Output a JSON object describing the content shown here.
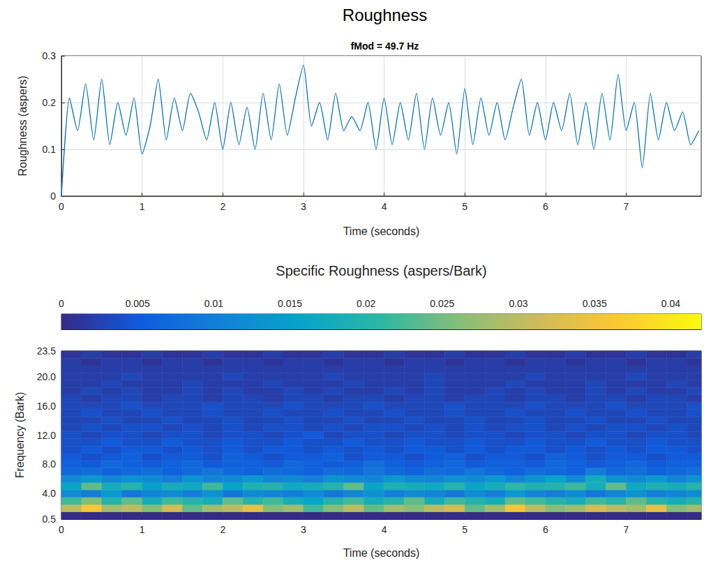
{
  "chart_data": [
    {
      "type": "line",
      "title": "Roughness",
      "subtitle": "fMod = 49.7 Hz",
      "x_label": "Time (seconds)",
      "y_label": "Roughness (aspers)",
      "x": [
        0,
        0.1,
        0.2,
        0.3,
        0.4,
        0.5,
        0.6,
        0.7,
        0.8,
        0.9,
        1,
        1.1,
        1.2,
        1.3,
        1.4,
        1.5,
        1.6,
        1.7,
        1.8,
        1.9,
        2,
        2.1,
        2.2,
        2.3,
        2.4,
        2.5,
        2.6,
        2.7,
        2.8,
        2.9,
        3,
        3.1,
        3.2,
        3.3,
        3.4,
        3.5,
        3.6,
        3.7,
        3.8,
        3.9,
        4,
        4.1,
        4.2,
        4.3,
        4.4,
        4.5,
        4.6,
        4.7,
        4.8,
        4.9,
        5,
        5.1,
        5.2,
        5.3,
        5.4,
        5.5,
        5.6,
        5.7,
        5.8,
        5.9,
        6,
        6.1,
        6.2,
        6.3,
        6.4,
        6.5,
        6.6,
        6.7,
        6.8,
        6.9,
        7,
        7.1,
        7.2,
        7.3,
        7.4,
        7.5,
        7.6,
        7.7,
        7.8,
        7.9
      ],
      "values": [
        0,
        0.21,
        0.14,
        0.24,
        0.12,
        0.25,
        0.11,
        0.2,
        0.13,
        0.21,
        0.09,
        0.15,
        0.25,
        0.12,
        0.21,
        0.14,
        0.22,
        0.18,
        0.12,
        0.2,
        0.1,
        0.2,
        0.11,
        0.19,
        0.1,
        0.22,
        0.12,
        0.24,
        0.13,
        0.21,
        0.28,
        0.15,
        0.2,
        0.12,
        0.22,
        0.14,
        0.17,
        0.14,
        0.2,
        0.1,
        0.21,
        0.11,
        0.2,
        0.12,
        0.22,
        0.1,
        0.21,
        0.13,
        0.2,
        0.09,
        0.23,
        0.11,
        0.21,
        0.13,
        0.2,
        0.12,
        0.19,
        0.25,
        0.13,
        0.2,
        0.12,
        0.2,
        0.14,
        0.22,
        0.11,
        0.2,
        0.1,
        0.22,
        0.12,
        0.26,
        0.14,
        0.2,
        0.06,
        0.22,
        0.12,
        0.2,
        0.14,
        0.18,
        0.11,
        0.14
      ],
      "color": "#0072bd",
      "xlim": [
        0,
        7.93
      ],
      "xticks": [
        0,
        1,
        2,
        3,
        4,
        5,
        6,
        7
      ],
      "ylim": [
        0,
        0.3
      ],
      "yticks": [
        0,
        0.1,
        0.2,
        0.3
      ],
      "grid": true
    },
    {
      "type": "heatmap",
      "x_label": "Time (seconds)",
      "y_label": "Frequency (Bark)",
      "xlim": [
        0,
        7.93
      ],
      "xticks": [
        0,
        1,
        2,
        3,
        4,
        5,
        6,
        7
      ],
      "ylim": [
        0.5,
        23.5
      ],
      "yticks": [
        {
          "value": 0.5,
          "label": "0.5"
        },
        {
          "value": 4,
          "label": "4.0"
        },
        {
          "value": 8,
          "label": "8.0"
        },
        {
          "value": 12,
          "label": "12.0"
        },
        {
          "value": 16,
          "label": "16.0"
        },
        {
          "value": 20,
          "label": "20.0"
        },
        {
          "value": 23.5,
          "label": "23.5"
        }
      ],
      "grid": false,
      "x_edges": [
        0,
        0.25,
        0.5,
        0.75,
        1,
        1.25,
        1.5,
        1.75,
        2,
        2.25,
        2.5,
        2.75,
        3,
        3.25,
        3.5,
        3.75,
        4,
        4.25,
        4.5,
        4.75,
        5,
        5.25,
        5.5,
        5.75,
        6,
        6.25,
        6.5,
        6.75,
        7,
        7.25,
        7.5,
        7.75,
        8
      ],
      "y_edges": [
        0.5,
        1.5,
        2.5,
        3.5,
        4.5,
        5.5,
        6.5,
        7.5,
        8.5,
        9.5,
        10.5,
        11.5,
        12.5,
        13.5,
        14.5,
        15.5,
        16.5,
        17.5,
        18.5,
        19.5,
        20.5,
        21.5,
        22.5,
        23.5
      ],
      "cells": [
        [
          0,
          0,
          0,
          0,
          0,
          0,
          0,
          0,
          0,
          0,
          0,
          0,
          0,
          0,
          0,
          0,
          0,
          0,
          0,
          0,
          0,
          0,
          0,
          0,
          0,
          0,
          0,
          0,
          0,
          0,
          0,
          0
        ],
        [
          0.03,
          0.036,
          0.028,
          0.03,
          0.026,
          0.032,
          0.024,
          0.028,
          0.03,
          0.034,
          0.026,
          0.028,
          0.022,
          0.026,
          0.03,
          0.024,
          0.028,
          0.026,
          0.03,
          0.032,
          0.024,
          0.028,
          0.036,
          0.03,
          0.026,
          0.028,
          0.032,
          0.03,
          0.028,
          0.034,
          0.026,
          0.028
        ],
        [
          0.022,
          0.026,
          0.02,
          0.024,
          0.018,
          0.022,
          0.02,
          0.018,
          0.024,
          0.02,
          0.022,
          0.018,
          0.016,
          0.02,
          0.022,
          0.018,
          0.02,
          0.024,
          0.018,
          0.022,
          0.02,
          0.018,
          0.024,
          0.022,
          0.02,
          0.018,
          0.022,
          0.02,
          0.024,
          0.02,
          0.018,
          0.02
        ],
        [
          0.012,
          0.01,
          0.014,
          0.009,
          0.011,
          0.012,
          0.01,
          0.013,
          0.009,
          0.012,
          0.011,
          0.01,
          0.012,
          0.009,
          0.011,
          0.013,
          0.01,
          0.012,
          0.011,
          0.009,
          0.012,
          0.01,
          0.014,
          0.011,
          0.01,
          0.012,
          0.009,
          0.011,
          0.013,
          0.01,
          0.011,
          0.012
        ],
        [
          0.016,
          0.024,
          0.018,
          0.02,
          0.015,
          0.018,
          0.017,
          0.022,
          0.016,
          0.019,
          0.02,
          0.017,
          0.018,
          0.02,
          0.024,
          0.016,
          0.019,
          0.018,
          0.017,
          0.02,
          0.016,
          0.018,
          0.021,
          0.019,
          0.02,
          0.022,
          0.018,
          0.024,
          0.017,
          0.019,
          0.018,
          0.02
        ],
        [
          0.012,
          0.014,
          0.011,
          0.013,
          0.012,
          0.01,
          0.013,
          0.011,
          0.012,
          0.014,
          0.011,
          0.012,
          0.01,
          0.013,
          0.012,
          0.011,
          0.014,
          0.012,
          0.011,
          0.013,
          0.012,
          0.014,
          0.011,
          0.013,
          0.016,
          0.012,
          0.018,
          0.013,
          0.012,
          0.014,
          0.011,
          0.013
        ],
        [
          0.007,
          0.008,
          0.006,
          0.007,
          0.008,
          0.006,
          0.007,
          0.009,
          0.007,
          0.006,
          0.008,
          0.007,
          0.006,
          0.008,
          0.007,
          0.009,
          0.007,
          0.006,
          0.008,
          0.007,
          0.009,
          0.007,
          0.006,
          0.008,
          0.007,
          0.006,
          0.01,
          0.007,
          0.008,
          0.006,
          0.007,
          0.008
        ],
        [
          0.006,
          0.005,
          0.007,
          0.006,
          0.005,
          0.006,
          0.007,
          0.005,
          0.006,
          0.006,
          0.005,
          0.007,
          0.006,
          0.005,
          0.006,
          0.008,
          0.006,
          0.005,
          0.006,
          0.007,
          0.005,
          0.006,
          0.006,
          0.005,
          0.007,
          0.006,
          0.005,
          0.006,
          0.007,
          0.005,
          0.006,
          0.006
        ],
        [
          0.005,
          0.004,
          0.005,
          0.006,
          0.004,
          0.005,
          0.005,
          0.004,
          0.006,
          0.005,
          0.004,
          0.005,
          0.005,
          0.006,
          0.004,
          0.005,
          0.005,
          0.004,
          0.005,
          0.006,
          0.004,
          0.005,
          0.005,
          0.004,
          0.006,
          0.005,
          0.004,
          0.005,
          0.005,
          0.004,
          0.005,
          0.005
        ],
        [
          0.004,
          0.005,
          0.004,
          0.005,
          0.005,
          0.004,
          0.005,
          0.004,
          0.005,
          0.004,
          0.005,
          0.005,
          0.004,
          0.005,
          0.004,
          0.005,
          0.004,
          0.005,
          0.005,
          0.004,
          0.005,
          0.004,
          0.005,
          0.005,
          0.004,
          0.005,
          0.004,
          0.005,
          0.004,
          0.005,
          0.005,
          0.004
        ],
        [
          0.004,
          0.004,
          0.005,
          0.004,
          0.004,
          0.005,
          0.004,
          0.004,
          0.005,
          0.004,
          0.004,
          0.005,
          0.004,
          0.004,
          0.005,
          0.004,
          0.004,
          0.005,
          0.004,
          0.004,
          0.005,
          0.004,
          0.004,
          0.005,
          0.004,
          0.004,
          0.005,
          0.004,
          0.004,
          0.005,
          0.004,
          0.004
        ],
        [
          0.004,
          0.003,
          0.004,
          0.004,
          0.003,
          0.004,
          0.004,
          0.003,
          0.004,
          0.004,
          0.003,
          0.004,
          0.005,
          0.003,
          0.004,
          0.004,
          0.003,
          0.004,
          0.004,
          0.003,
          0.004,
          0.004,
          0.003,
          0.004,
          0.004,
          0.003,
          0.004,
          0.004,
          0.003,
          0.004,
          0.004,
          0.003
        ],
        [
          0.003,
          0.004,
          0.003,
          0.004,
          0.004,
          0.003,
          0.004,
          0.003,
          0.004,
          0.003,
          0.004,
          0.004,
          0.003,
          0.004,
          0.003,
          0.004,
          0.004,
          0.003,
          0.004,
          0.003,
          0.004,
          0.003,
          0.004,
          0.004,
          0.003,
          0.004,
          0.003,
          0.004,
          0.004,
          0.003,
          0.004,
          0.003
        ],
        [
          0.003,
          0.003,
          0.004,
          0.003,
          0.003,
          0.004,
          0.003,
          0.003,
          0.004,
          0.003,
          0.003,
          0.004,
          0.003,
          0.003,
          0.004,
          0.003,
          0.003,
          0.004,
          0.003,
          0.003,
          0.004,
          0.003,
          0.003,
          0.004,
          0.003,
          0.003,
          0.004,
          0.003,
          0.003,
          0.004,
          0.003,
          0.003
        ],
        [
          0.003,
          0.004,
          0.003,
          0.003,
          0.004,
          0.003,
          0.003,
          0.004,
          0.003,
          0.003,
          0.004,
          0.003,
          0.003,
          0.004,
          0.003,
          0.003,
          0.004,
          0.003,
          0.003,
          0.004,
          0.003,
          0.003,
          0.004,
          0.003,
          0.003,
          0.004,
          0.003,
          0.003,
          0.004,
          0.003,
          0.003,
          0.004
        ],
        [
          0.003,
          0.003,
          0.003,
          0.004,
          0.003,
          0.003,
          0.003,
          0.004,
          0.003,
          0.003,
          0.003,
          0.004,
          0.003,
          0.003,
          0.003,
          0.004,
          0.003,
          0.003,
          0.003,
          0.004,
          0.003,
          0.003,
          0.003,
          0.004,
          0.003,
          0.003,
          0.003,
          0.004,
          0.003,
          0.003,
          0.003,
          0.004
        ],
        [
          0.003,
          0.002,
          0.003,
          0.003,
          0.002,
          0.003,
          0.003,
          0.002,
          0.003,
          0.003,
          0.002,
          0.003,
          0.003,
          0.002,
          0.003,
          0.003,
          0.002,
          0.003,
          0.003,
          0.002,
          0.003,
          0.003,
          0.002,
          0.003,
          0.003,
          0.002,
          0.003,
          0.003,
          0.002,
          0.003,
          0.003,
          0.002
        ],
        [
          0.002,
          0.003,
          0.002,
          0.003,
          0.002,
          0.002,
          0.003,
          0.002,
          0.003,
          0.002,
          0.002,
          0.003,
          0.002,
          0.003,
          0.002,
          0.002,
          0.003,
          0.002,
          0.003,
          0.002,
          0.002,
          0.003,
          0.002,
          0.003,
          0.002,
          0.002,
          0.003,
          0.002,
          0.003,
          0.002,
          0.002,
          0.003
        ],
        [
          0.002,
          0.002,
          0.003,
          0.002,
          0.002,
          0.002,
          0.003,
          0.002,
          0.002,
          0.002,
          0.003,
          0.002,
          0.002,
          0.002,
          0.003,
          0.002,
          0.002,
          0.002,
          0.003,
          0.002,
          0.002,
          0.002,
          0.003,
          0.002,
          0.002,
          0.002,
          0.003,
          0.002,
          0.002,
          0.002,
          0.003,
          0.002
        ],
        [
          0.002,
          0.002,
          0.002,
          0.003,
          0.002,
          0.002,
          0.002,
          0.002,
          0.003,
          0.002,
          0.002,
          0.002,
          0.002,
          0.003,
          0.002,
          0.002,
          0.002,
          0.002,
          0.003,
          0.002,
          0.002,
          0.002,
          0.002,
          0.003,
          0.002,
          0.002,
          0.002,
          0.002,
          0.003,
          0.002,
          0.002,
          0.002
        ],
        [
          0.002,
          0.002,
          0.002,
          0.002,
          0.002,
          0.002,
          0.002,
          0.002,
          0.002,
          0.002,
          0.002,
          0.002,
          0.002,
          0.002,
          0.002,
          0.002,
          0.002,
          0.002,
          0.002,
          0.002,
          0.002,
          0.002,
          0.002,
          0.002,
          0.002,
          0.002,
          0.002,
          0.002,
          0.002,
          0.002,
          0.002,
          0.002
        ],
        [
          0.002,
          0.001,
          0.002,
          0.002,
          0.001,
          0.002,
          0.002,
          0.001,
          0.002,
          0.002,
          0.001,
          0.002,
          0.002,
          0.001,
          0.002,
          0.002,
          0.001,
          0.002,
          0.002,
          0.001,
          0.002,
          0.002,
          0.001,
          0.002,
          0.002,
          0.001,
          0.002,
          0.002,
          0.001,
          0.002,
          0.002,
          0.001
        ],
        [
          0.001,
          0.002,
          0.001,
          0.001,
          0.002,
          0.001,
          0.001,
          0.002,
          0.001,
          0.001,
          0.002,
          0.001,
          0.001,
          0.002,
          0.001,
          0.001,
          0.002,
          0.001,
          0.001,
          0.002,
          0.001,
          0.001,
          0.002,
          0.001,
          0.001,
          0.002,
          0.001,
          0.001,
          0.002,
          0.001,
          0.001,
          0.002
        ]
      ],
      "colorbar": {
        "label": "Specific Roughness (aspers/Bark)",
        "lim": [
          0,
          0.042
        ],
        "ticks": [
          0,
          0.005,
          0.01,
          0.015,
          0.02,
          0.025,
          0.03,
          0.035,
          0.04
        ]
      }
    }
  ]
}
